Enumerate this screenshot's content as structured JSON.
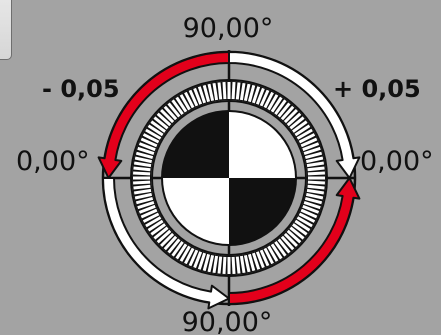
{
  "angles": {
    "top": "90,00°",
    "bottom": "90,00°",
    "left": "0,00°",
    "right": "0,00°"
  },
  "steps": {
    "minus": "- 0,05",
    "plus": "+ 0,05"
  },
  "colors": {
    "background": "#a3a3a3",
    "arrow_active": "#e3001b",
    "arrow_inactive": "#ffffff",
    "target_dark": "#111111",
    "target_light": "#ffffff"
  }
}
